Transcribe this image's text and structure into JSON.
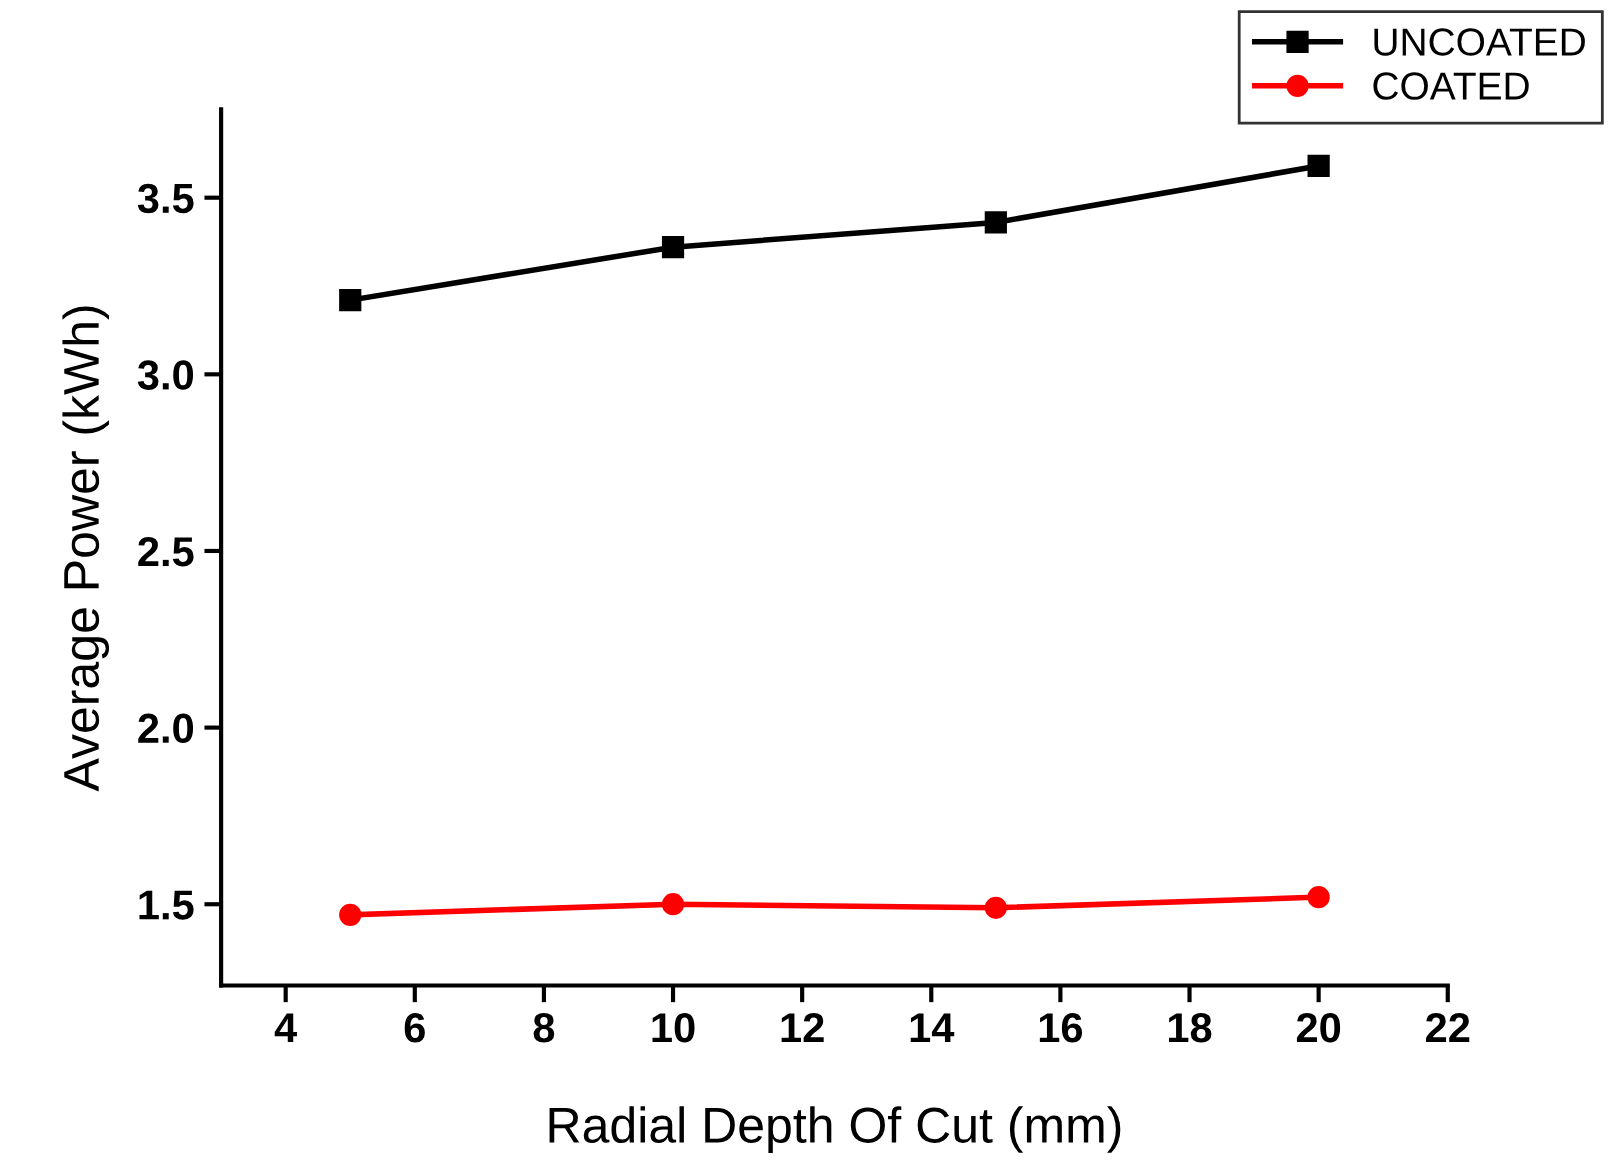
{
  "chart_data": {
    "type": "line",
    "xlabel": "Radial Depth Of Cut (mm)",
    "ylabel": "Average Power (kWh)",
    "x": [
      5,
      10,
      15,
      20
    ],
    "series": [
      {
        "name": "UNCOATED",
        "color": "#000000",
        "values": [
          3.21,
          3.36,
          3.43,
          3.59
        ],
        "marker": "square"
      },
      {
        "name": "COATED",
        "color": "#ff0000",
        "values": [
          1.47,
          1.5,
          1.49,
          1.52
        ],
        "marker": "circle"
      }
    ],
    "xlim": [
      3,
      22
    ],
    "xticks": [
      4,
      6,
      8,
      10,
      12,
      14,
      16,
      18,
      20,
      22
    ],
    "ylim": [
      1.27,
      3.75
    ],
    "yticks": [
      {
        "value": 1.5,
        "label": "1.5"
      },
      {
        "value": 2.0,
        "label": "2.0"
      },
      {
        "value": 2.5,
        "label": "2.5"
      },
      {
        "value": 3.0,
        "label": "3.0"
      },
      {
        "value": 3.5,
        "label": "3.5"
      }
    ],
    "grid": false,
    "legend": "top right",
    "line_style": "solid"
  }
}
